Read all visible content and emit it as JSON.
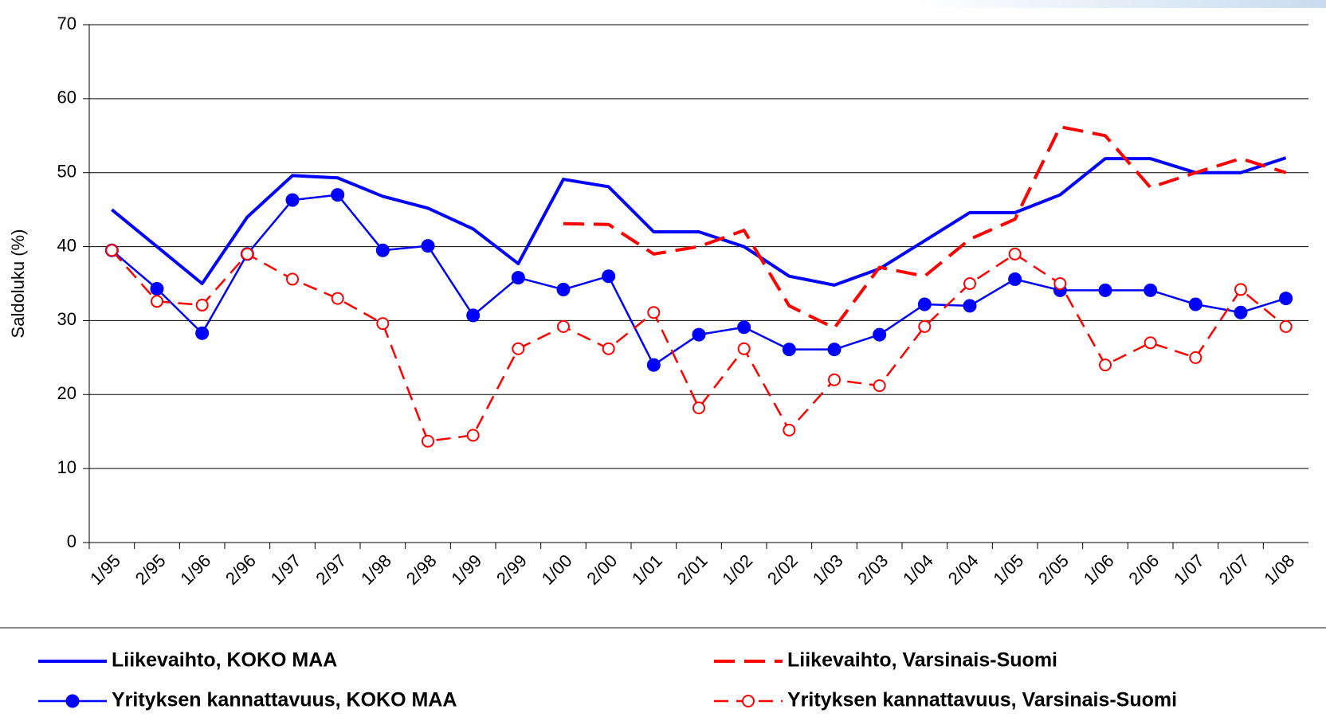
{
  "chart_data": {
    "type": "line",
    "y_label": "Saldoluku (%)",
    "categories": [
      "1/95",
      "2/95",
      "1/96",
      "2/96",
      "1/97",
      "2/97",
      "1/98",
      "2/98",
      "1/99",
      "2/99",
      "1/00",
      "2/00",
      "1/01",
      "2/01",
      "1/02",
      "2/02",
      "1/03",
      "2/03",
      "1/04",
      "2/04",
      "1/05",
      "2/05",
      "1/06",
      "2/06",
      "1/07",
      "2/07",
      "1/08"
    ],
    "series": [
      {
        "name": "Liikevaihto, KOKO MAA",
        "color": "#0000ff",
        "dash": false,
        "marker": "none",
        "values": [
          45,
          40,
          35,
          44,
          49.6,
          49.3,
          46.8,
          45.2,
          42.4,
          37.7,
          49.1,
          48.1,
          42,
          42,
          40,
          36,
          34.8,
          37,
          40.8,
          44.6,
          44.6,
          47,
          51.9,
          51.9,
          50,
          50,
          52
        ]
      },
      {
        "name": "Yrityksen kannattavuus, KOKO MAA",
        "color": "#0000ff",
        "dash": false,
        "marker": "filled",
        "values": [
          39.5,
          34.3,
          28.3,
          39,
          46.3,
          47,
          39.5,
          40.1,
          30.7,
          35.8,
          34.2,
          36,
          24,
          28.1,
          29.1,
          26.1,
          26.1,
          28.1,
          32.2,
          32,
          35.6,
          34.1,
          34.1,
          34.1,
          32.2,
          31.1,
          33
        ]
      },
      {
        "name": "Liikevaihto, Varsinais-Suomi",
        "color": "#ff0000",
        "dash": true,
        "marker": "none",
        "values": [
          null,
          null,
          null,
          null,
          null,
          null,
          null,
          null,
          null,
          null,
          43.1,
          43,
          39,
          40,
          42.2,
          32,
          29,
          37.2,
          36,
          41,
          43.7,
          56.2,
          55,
          48,
          50,
          51.9,
          50
        ]
      },
      {
        "name": "Yrityksen kannattavuus, Varsinais-Suomi",
        "color": "#ff0000",
        "dash": true,
        "marker": "hollow",
        "values": [
          39.5,
          32.6,
          32.1,
          39,
          35.6,
          33,
          29.6,
          13.7,
          14.5,
          26.2,
          29.2,
          26.2,
          31.1,
          18.2,
          26.2,
          15.2,
          22,
          21.2,
          29.2,
          35,
          39,
          35,
          24,
          27,
          25,
          34.2,
          29.2
        ]
      }
    ],
    "ylim": [
      0,
      70
    ],
    "yticks": [
      0,
      10,
      20,
      30,
      40,
      50,
      60,
      70
    ],
    "grid": true,
    "legend": "bottom"
  }
}
